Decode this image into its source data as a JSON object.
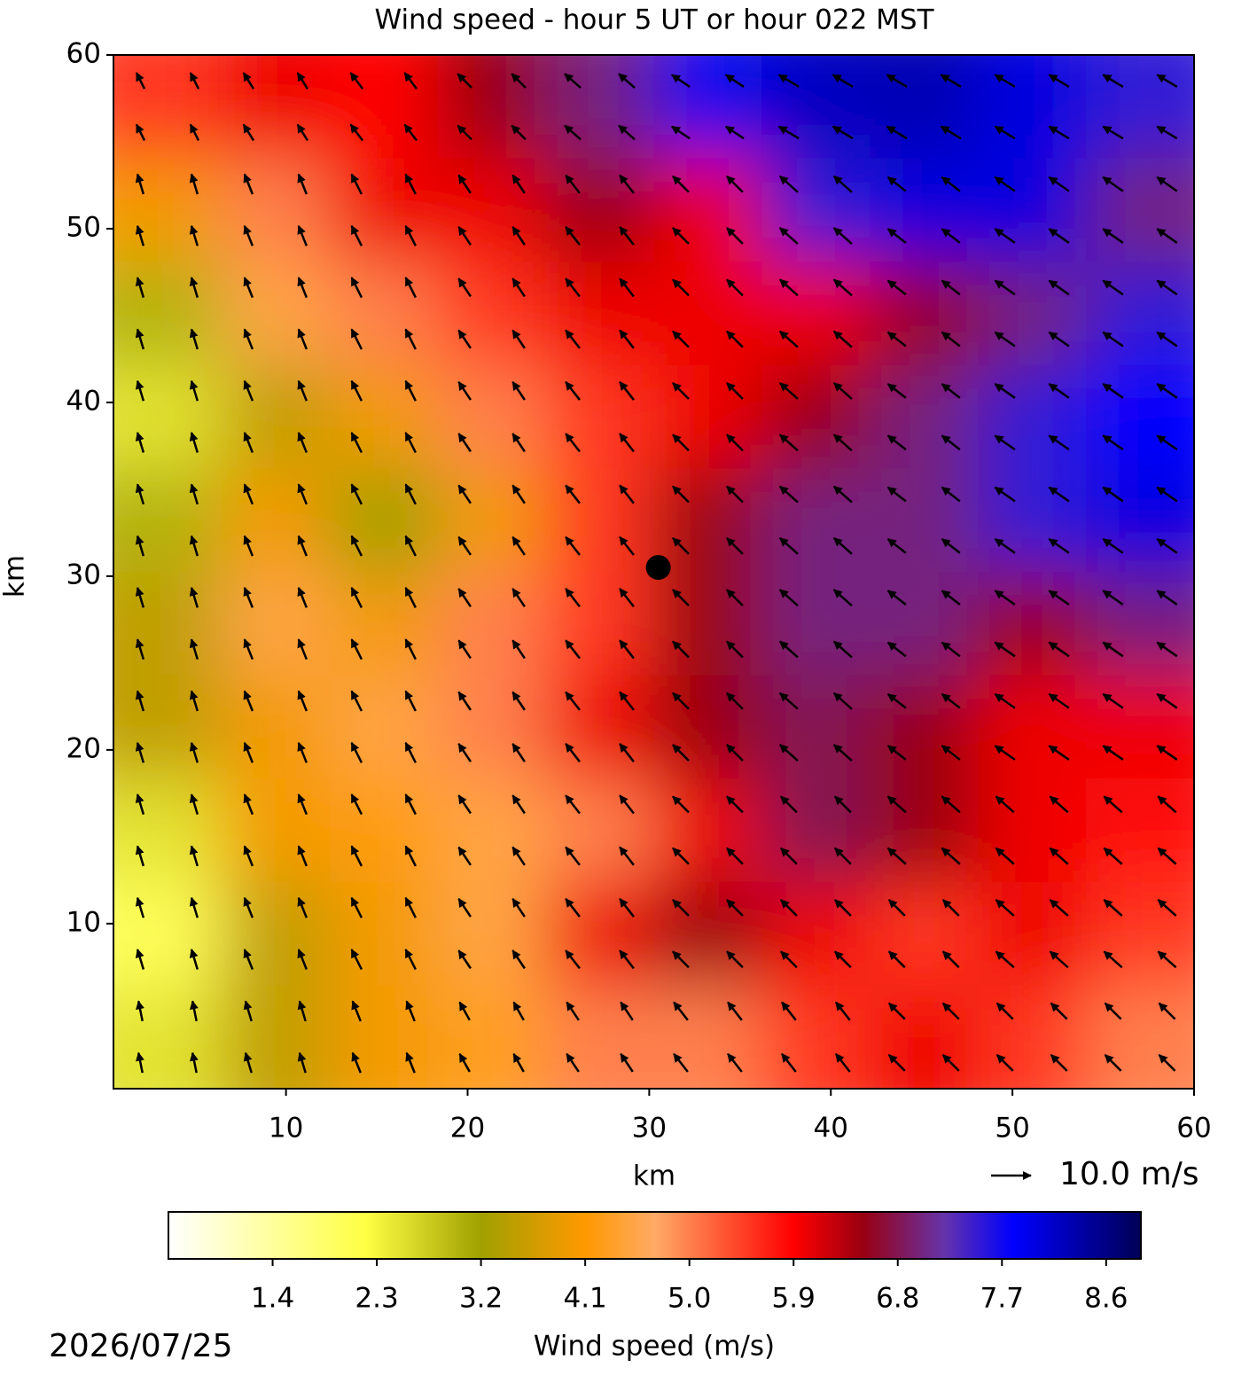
{
  "chart_data": {
    "type": "field",
    "title": "Wind speed - hour 5 UT or hour 022 MST",
    "x_label": "km",
    "y_label": "km",
    "xlim": [
      0.5,
      60
    ],
    "ylim": [
      0.5,
      60
    ],
    "xticks": [
      10,
      20,
      30,
      40,
      50,
      60
    ],
    "yticks": [
      10,
      20,
      30,
      40,
      50,
      60
    ],
    "speed": [
      [
        5.5,
        6,
        5.9,
        6.5,
        7,
        7.7,
        8.2,
        8.3,
        8,
        7.5
      ],
      [
        4,
        5,
        6,
        6,
        6.5,
        6,
        7.5,
        8,
        8,
        7
      ],
      [
        3,
        4.5,
        5,
        5.5,
        6,
        6,
        6,
        6.5,
        7,
        7.5
      ],
      [
        2.5,
        3.5,
        4,
        5,
        5.5,
        6,
        6.5,
        7,
        7.5,
        7.8
      ],
      [
        3,
        4,
        3.2,
        4,
        5.5,
        6.5,
        7,
        7,
        7.5,
        8
      ],
      [
        3.5,
        4.5,
        4,
        5,
        5.5,
        6.5,
        7,
        7,
        6.5,
        7
      ],
      [
        3.5,
        4,
        4.5,
        5,
        6,
        6.5,
        6.8,
        6.5,
        6,
        6
      ],
      [
        2.5,
        4,
        4.2,
        4.5,
        5,
        6,
        6.8,
        6.5,
        6,
        5.8
      ],
      [
        2,
        3.5,
        4,
        4.5,
        6,
        6.5,
        6,
        5.5,
        6,
        5.5
      ],
      [
        2.5,
        3.5,
        4,
        4.3,
        5,
        5,
        5.5,
        6,
        5.5,
        5
      ]
    ],
    "u": [
      [
        -2,
        -2.5,
        -3,
        -3.5,
        -4,
        -4.5,
        -5,
        -5,
        -5,
        -5
      ],
      [
        -1.5,
        -2,
        -2.5,
        -3,
        -3.5,
        -4,
        -4.5,
        -4.5,
        -5,
        -5
      ],
      [
        -1.5,
        -2,
        -2.5,
        -3,
        -3.5,
        -4,
        -4.5,
        -4.5,
        -5,
        -5
      ],
      [
        -1.5,
        -2,
        -2.5,
        -3,
        -3.5,
        -4,
        -4.5,
        -4.5,
        -5,
        -5
      ],
      [
        -1.5,
        -2,
        -2.5,
        -3,
        -3.5,
        -4,
        -4.5,
        -4.5,
        -5,
        -5
      ],
      [
        -1.5,
        -2,
        -2.5,
        -3,
        -3.5,
        -4,
        -4.5,
        -4.5,
        -5,
        -5
      ],
      [
        -1.5,
        -2,
        -2.5,
        -3,
        -3.5,
        -4,
        -4.5,
        -4.5,
        -5,
        -5
      ],
      [
        -1.5,
        -2,
        -2.5,
        -3,
        -3.5,
        -4,
        -4,
        -4.5,
        -4.5,
        -4.5
      ],
      [
        -1.5,
        -2,
        -2.5,
        -3,
        -3.5,
        -4,
        -4,
        -4,
        -4.5,
        -4.5
      ],
      [
        -1,
        -1.5,
        -2,
        -2.5,
        -3,
        -3.5,
        -3.5,
        -4,
        -4,
        -4
      ]
    ],
    "v": [
      [
        4,
        4,
        4,
        3.5,
        3.5,
        3,
        3,
        3,
        3,
        3
      ],
      [
        5,
        5,
        5,
        4.5,
        4.5,
        4,
        4,
        3.5,
        3.5,
        3.5
      ],
      [
        5,
        5,
        5,
        4.5,
        4.5,
        4,
        4,
        3.5,
        3.5,
        3.5
      ],
      [
        5,
        5,
        5,
        4.5,
        4.5,
        4,
        4,
        3.5,
        3.5,
        3.5
      ],
      [
        5,
        5,
        5,
        4.5,
        4.5,
        4,
        4,
        3.5,
        3.5,
        3.5
      ],
      [
        5,
        5,
        5,
        4.5,
        4.5,
        4,
        4,
        3.5,
        3.5,
        3.5
      ],
      [
        5,
        5,
        5,
        4.5,
        4.5,
        4,
        4,
        3.5,
        3.5,
        3.5
      ],
      [
        5,
        5,
        5,
        4.5,
        4.5,
        4,
        4,
        4,
        4,
        4
      ],
      [
        5,
        5,
        5,
        4.5,
        4.5,
        4,
        4,
        4,
        4,
        4
      ],
      [
        5,
        5,
        5,
        4.5,
        4.5,
        4.5,
        4.5,
        4,
        4,
        4
      ]
    ],
    "marker": {
      "x": 30.5,
      "y": 30.5,
      "color": "#000000"
    },
    "reference_vector": {
      "value": 10,
      "label": "10.0 m/s"
    },
    "colorbar": {
      "label": "Wind speed (m/s)",
      "lim": [
        0.5,
        8.9
      ],
      "ticks": [
        1.4,
        2.3,
        3.2,
        4.1,
        5.0,
        5.9,
        6.8,
        7.7,
        8.6
      ],
      "colormap": [
        [
          0.5,
          "#ffffff"
        ],
        [
          2.2,
          "#ffff44"
        ],
        [
          3.2,
          "#a0a000"
        ],
        [
          4.1,
          "#ff9900"
        ],
        [
          4.7,
          "#ffaa66"
        ],
        [
          5.9,
          "#ff0000"
        ],
        [
          6.5,
          "#990011"
        ],
        [
          7.2,
          "#6633aa"
        ],
        [
          7.8,
          "#0000ff"
        ],
        [
          8.9,
          "#000055"
        ]
      ]
    },
    "date": "2026/07/25"
  }
}
